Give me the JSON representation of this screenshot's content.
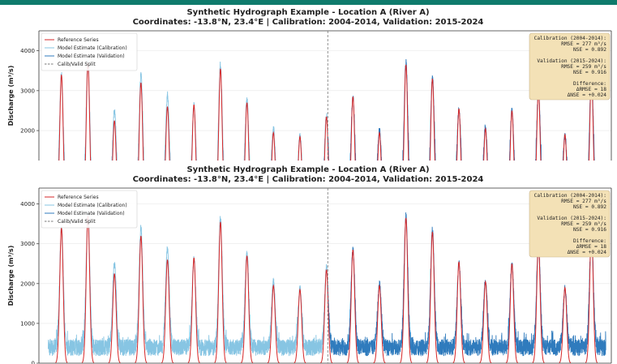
{
  "window": {
    "accent_color": "#0f7b6c"
  },
  "chart_data": [
    {
      "type": "line",
      "title": "Synthetic Hydrograph Example - Location A (River A)",
      "subtitle": "Coordinates: -13.8°N, 23.4°E  |  Calibration: 2004-2014, Validation: 2015-2024",
      "xlabel": "",
      "ylabel": "Discharge (m³/s)",
      "ylim": [
        1250,
        4500
      ],
      "yticks": [
        2000,
        3000,
        4000
      ],
      "xlim": [
        2003.6,
        2025.2
      ],
      "split_year": 2014.5,
      "grid": true,
      "legend_position": "top-left",
      "legend": [
        "Reference Series",
        "Model Estimate (Calibration)",
        "Model Estimate (Validation)",
        "Calib/Valid Split"
      ],
      "series": [
        {
          "name": "Reference Series",
          "color": "#d62728"
        },
        {
          "name": "Model Estimate (Calibration)",
          "color": "#87c5e3"
        },
        {
          "name": "Model Estimate (Validation)",
          "color": "#2f7bbd"
        },
        {
          "name": "Calib/Valid Split",
          "color": "#777777"
        }
      ],
      "peaks": {
        "year": [
          2004.45,
          2005.45,
          2006.45,
          2007.45,
          2008.45,
          2009.45,
          2010.45,
          2011.45,
          2012.45,
          2013.45,
          2014.45,
          2015.45,
          2016.45,
          2017.45,
          2018.45,
          2019.45,
          2020.45,
          2021.45,
          2022.45,
          2023.45,
          2024.45
        ],
        "reference": [
          3400,
          3700,
          2250,
          3200,
          2600,
          2650,
          3550,
          2700,
          1950,
          1850,
          2350,
          2850,
          1950,
          3650,
          3300,
          2550,
          2050,
          2500,
          3000,
          1900,
          3400
        ],
        "model": [
          3400,
          3720,
          2500,
          3400,
          2900,
          2620,
          3650,
          2800,
          2050,
          1870,
          2400,
          2850,
          2000,
          3700,
          3350,
          2550,
          2100,
          2500,
          3050,
          1870,
          3400
        ]
      },
      "stats": [
        "Calibration (2004-2014):",
        "RMSE = 277 m³/s",
        "NSE  = 0.892",
        "",
        "Validation (2015-2024):",
        "RMSE = 259 m³/s",
        "NSE  = 0.916",
        "",
        "Difference:",
        "ΔRMSE = 18",
        "ΔNSE  = +0.024"
      ]
    },
    {
      "type": "line",
      "title": "Synthetic Hydrograph Example - Location A (River A)",
      "subtitle": "Coordinates: -13.8°N, 23.4°E  |  Calibration: 2004-2014, Validation: 2015-2024",
      "xlabel": "",
      "ylabel": "Discharge (m³/s)",
      "ylim": [
        0,
        4400
      ],
      "yticks": [
        0,
        1000,
        2000,
        3000,
        4000
      ],
      "xlim": [
        2003.6,
        2025.2
      ],
      "split_year": 2014.5,
      "grid": true,
      "legend_position": "top-left",
      "legend": [
        "Reference Series",
        "Model Estimate (Calibration)",
        "Model Estimate (Validation)",
        "Calib/Valid Split"
      ],
      "series": [
        {
          "name": "Reference Series",
          "color": "#d62728"
        },
        {
          "name": "Model Estimate (Calibration)",
          "color": "#87c5e3"
        },
        {
          "name": "Model Estimate (Validation)",
          "color": "#2f7bbd"
        },
        {
          "name": "Calib/Valid Split",
          "color": "#777777"
        }
      ],
      "peaks": {
        "year": [
          2004.45,
          2005.45,
          2006.45,
          2007.45,
          2008.45,
          2009.45,
          2010.45,
          2011.45,
          2012.45,
          2013.45,
          2014.45,
          2015.45,
          2016.45,
          2017.45,
          2018.45,
          2019.45,
          2020.45,
          2021.45,
          2022.45,
          2023.45,
          2024.45
        ],
        "reference": [
          3400,
          3700,
          2250,
          3200,
          2600,
          2650,
          3550,
          2700,
          1950,
          1850,
          2350,
          2850,
          1950,
          3650,
          3300,
          2550,
          2050,
          2500,
          3000,
          1900,
          3400
        ],
        "model": [
          3400,
          3720,
          2500,
          3400,
          2900,
          2620,
          3650,
          2800,
          2050,
          1870,
          2400,
          2850,
          2000,
          3700,
          3350,
          2550,
          2100,
          2500,
          3050,
          1870,
          3400
        ]
      },
      "stats": [
        "Calibration (2004-2014):",
        "RMSE = 277 m³/s",
        "NSE  = 0.892",
        "",
        "Validation (2015-2024):",
        "RMSE = 259 m³/s",
        "NSE  = 0.916",
        "",
        "Difference:",
        "ΔRMSE = 18",
        "ΔNSE  = +0.024"
      ]
    }
  ]
}
